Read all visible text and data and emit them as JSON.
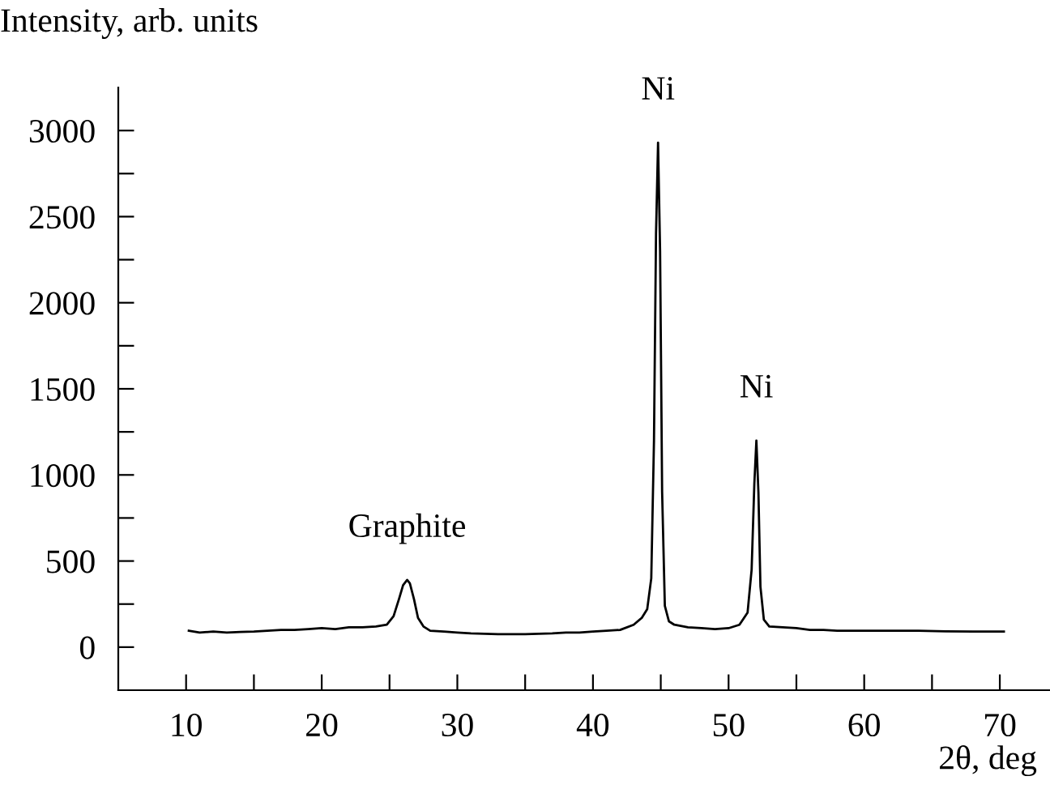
{
  "chart_data": {
    "type": "line",
    "ylabel": "Intensity, arb. units",
    "xlabel": "2θ, deg",
    "xlim": [
      5,
      73.7
    ],
    "ylim": [
      -250,
      3250
    ],
    "xticks": [
      10,
      {
        "value": 15,
        "label": null
      },
      20,
      {
        "value": 25,
        "label": null
      },
      30,
      {
        "value": 35,
        "label": null
      },
      40,
      {
        "value": 45,
        "label": null
      },
      50,
      {
        "value": 55,
        "label": null
      },
      60,
      {
        "value": 65,
        "label": null
      },
      70
    ],
    "yticks": [
      0,
      {
        "value": 250,
        "label": null
      },
      500,
      {
        "value": 750,
        "label": null
      },
      1000,
      {
        "value": 1250,
        "label": null
      },
      1500,
      {
        "value": 1750,
        "label": null
      },
      2000,
      {
        "value": 2250,
        "label": null
      },
      2500,
      {
        "value": 2750,
        "label": null
      },
      3000
    ],
    "grid": false,
    "legend": false,
    "series": [
      {
        "color": "#000000",
        "x": [
          10.2,
          11,
          12,
          13,
          14,
          15,
          16,
          17,
          18,
          19,
          20,
          21,
          22,
          23,
          24,
          24.8,
          25.3,
          25.7,
          26.0,
          26.3,
          26.5,
          26.8,
          27.1,
          27.5,
          28,
          29,
          30,
          31,
          32,
          33,
          34,
          35,
          36,
          37,
          38,
          39,
          40,
          41,
          42,
          43,
          43.6,
          44.0,
          44.3,
          44.5,
          44.65,
          44.8,
          44.95,
          45.1,
          45.3,
          45.6,
          46,
          47,
          48,
          49,
          50,
          50.8,
          51.4,
          51.7,
          51.9,
          52.05,
          52.2,
          52.35,
          52.6,
          53,
          54,
          55,
          56,
          57,
          58,
          59,
          60,
          62,
          64,
          66,
          68,
          70.3
        ],
        "values": [
          95,
          85,
          90,
          85,
          88,
          90,
          95,
          100,
          100,
          105,
          110,
          105,
          115,
          115,
          120,
          130,
          180,
          280,
          360,
          390,
          370,
          280,
          170,
          120,
          95,
          90,
          85,
          80,
          78,
          75,
          75,
          75,
          78,
          80,
          85,
          85,
          90,
          95,
          100,
          130,
          170,
          220,
          400,
          1200,
          2400,
          2930,
          2300,
          900,
          240,
          150,
          130,
          115,
          110,
          105,
          110,
          130,
          200,
          450,
          950,
          1200,
          900,
          350,
          160,
          120,
          115,
          110,
          100,
          100,
          95,
          95,
          95,
          95,
          95,
          92,
          90,
          90
        ]
      }
    ],
    "annotations": [
      {
        "text": "Graphite",
        "x": 26.3,
        "y": 390
      },
      {
        "text": "Ni",
        "x": 44.8,
        "y": 2930
      },
      {
        "text": "Ni",
        "x": 52.05,
        "y": 1200
      }
    ]
  }
}
